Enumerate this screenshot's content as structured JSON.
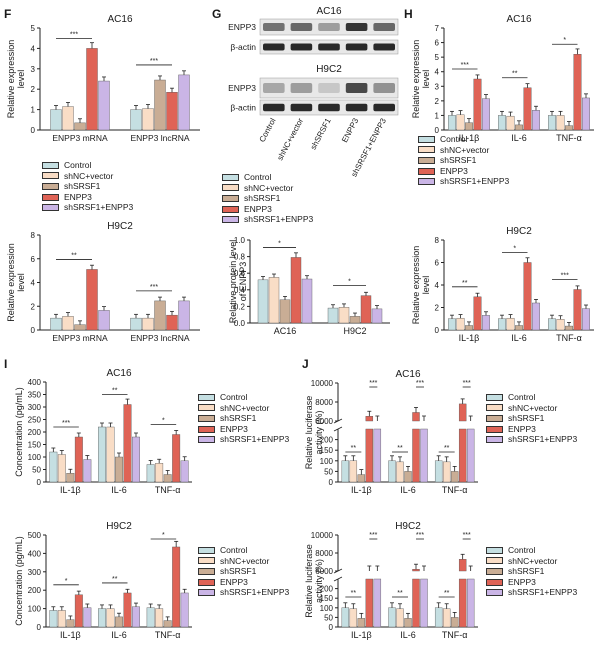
{
  "series_names": [
    "Control",
    "shNC+vector",
    "shSRSF1",
    "ENPP3",
    "shSRSF1+ENPP3"
  ],
  "colors": {
    "Control": "#c5dfe2",
    "shNC+vector": "#f9ddc6",
    "shSRSF1": "#c9ad95",
    "ENPP3": "#df6356",
    "shSRSF1+ENPP3": "#cab5e6"
  },
  "panels": {
    "F": {
      "letter": "F",
      "ylabel": "Relative expression level",
      "cells": [
        "AC16",
        "H9C2"
      ],
      "categories": [
        "ENPP3 mRNA",
        "ENPP3 lncRNA"
      ]
    },
    "G": {
      "letter": "G",
      "blot_cells": [
        "AC16",
        "H9C2"
      ],
      "blot_labels": [
        "ENPP3",
        "β-actin",
        "ENPP3",
        "β-actin"
      ],
      "lane_labels": [
        "Control",
        "shNC+vector",
        "shSRSF1",
        "ENPP3",
        "shSRSF1+ENPP3"
      ],
      "ylabel": "Relative protein level of ENPP3"
    },
    "H": {
      "letter": "H",
      "ylabel": "Relative expression level",
      "cells": [
        "AC16",
        "H9C2"
      ],
      "categories": [
        "IL-1β",
        "IL-6",
        "TNF-α"
      ]
    },
    "I": {
      "letter": "I",
      "ylabel": "Concentration (pg/mL)",
      "cells": [
        "AC16",
        "H9C2"
      ],
      "categories": [
        "IL-1β",
        "IL-6",
        "TNF-α"
      ]
    },
    "J": {
      "letter": "J",
      "ylabel": "Relative luciferase activity (%)",
      "cells": [
        "AC16",
        "H9C2"
      ],
      "categories": [
        "IL-1β",
        "IL-6",
        "TNF-α"
      ]
    }
  },
  "chart_data": [
    {
      "id": "F-AC16",
      "type": "bar",
      "title": "AC16",
      "ylabel": "Relative expression level",
      "ylim": [
        0,
        5
      ],
      "yticks": [
        "0",
        "1",
        "2",
        "3",
        "4",
        "5"
      ],
      "categories": [
        "ENPP3 mRNA",
        "ENPP3 lncRNA"
      ],
      "series": [
        {
          "name": "Control",
          "values": [
            1.0,
            1.0
          ]
        },
        {
          "name": "shNC+vector",
          "values": [
            1.15,
            1.05
          ]
        },
        {
          "name": "shSRSF1",
          "values": [
            0.35,
            2.45
          ]
        },
        {
          "name": "ENPP3",
          "values": [
            4.0,
            1.85
          ]
        },
        {
          "name": "shSRSF1+ENPP3",
          "values": [
            2.4,
            2.7
          ]
        }
      ],
      "significance": [
        "***"
      ]
    },
    {
      "id": "F-H9C2",
      "type": "bar",
      "title": "H9C2",
      "ylabel": "Relative expression level",
      "ylim": [
        0,
        8
      ],
      "yticks": [
        "0",
        "2",
        "4",
        "6",
        "8"
      ],
      "categories": [
        "ENPP3 mRNA",
        "ENPP3 lncRNA"
      ],
      "series": [
        {
          "name": "Control",
          "values": [
            1.0,
            1.0
          ]
        },
        {
          "name": "shNC+vector",
          "values": [
            1.15,
            1.0
          ]
        },
        {
          "name": "shSRSF1",
          "values": [
            0.45,
            2.45
          ]
        },
        {
          "name": "ENPP3",
          "values": [
            5.1,
            1.25
          ]
        },
        {
          "name": "shSRSF1+ENPP3",
          "values": [
            1.65,
            2.45
          ]
        }
      ],
      "significance": [
        "**",
        "***"
      ]
    },
    {
      "id": "G",
      "type": "bar",
      "title": "",
      "ylabel": "Relative protein level of ENPP3",
      "ylim": [
        0,
        1.0
      ],
      "yticks": [
        "0.0",
        "0.2",
        "0.4",
        "0.6",
        "0.8",
        "1.0"
      ],
      "categories": [
        "AC16",
        "H9C2"
      ],
      "series": [
        {
          "name": "Control",
          "values": [
            0.52,
            0.18
          ]
        },
        {
          "name": "shNC+vector",
          "values": [
            0.55,
            0.19
          ]
        },
        {
          "name": "shSRSF1",
          "values": [
            0.28,
            0.08
          ]
        },
        {
          "name": "ENPP3",
          "values": [
            0.79,
            0.33
          ]
        },
        {
          "name": "shSRSF1+ENPP3",
          "values": [
            0.53,
            0.17
          ]
        }
      ],
      "significance": [
        "*"
      ]
    },
    {
      "id": "H-AC16",
      "type": "bar",
      "title": "AC16",
      "ylabel": "Relative expression level",
      "ylim": [
        0,
        7
      ],
      "yticks": [
        "0",
        "1",
        "2",
        "3",
        "4",
        "5",
        "6",
        "7"
      ],
      "categories": [
        "IL-1β",
        "IL-6",
        "TNF-α"
      ],
      "series": [
        {
          "name": "Control",
          "values": [
            1.0,
            1.0,
            1.0
          ]
        },
        {
          "name": "shNC+vector",
          "values": [
            1.05,
            0.95,
            1.0
          ]
        },
        {
          "name": "shSRSF1",
          "values": [
            0.5,
            0.35,
            0.3
          ]
        },
        {
          "name": "ENPP3",
          "values": [
            3.5,
            2.9,
            5.2
          ]
        },
        {
          "name": "shSRSF1+ENPP3",
          "values": [
            2.15,
            1.35,
            2.2
          ]
        }
      ],
      "significance": [
        "***",
        "**",
        "*"
      ]
    },
    {
      "id": "H-H9C2",
      "type": "bar",
      "title": "H9C2",
      "ylabel": "Relative expression level",
      "ylim": [
        0,
        8
      ],
      "yticks": [
        "0",
        "2",
        "4",
        "6",
        "8"
      ],
      "categories": [
        "IL-1β",
        "IL-6",
        "TNF-α"
      ],
      "series": [
        {
          "name": "Control",
          "values": [
            1.0,
            1.0,
            1.0
          ]
        },
        {
          "name": "shNC+vector",
          "values": [
            1.05,
            1.05,
            0.95
          ]
        },
        {
          "name": "shSRSF1",
          "values": [
            0.4,
            0.4,
            0.35
          ]
        },
        {
          "name": "ENPP3",
          "values": [
            2.95,
            6.0,
            3.6
          ]
        },
        {
          "name": "shSRSF1+ENPP3",
          "values": [
            1.3,
            2.4,
            1.9
          ]
        }
      ],
      "significance": [
        "**",
        "*",
        "***"
      ]
    },
    {
      "id": "I-AC16",
      "type": "bar",
      "title": "AC16",
      "ylabel": "Concentration (pg/mL)",
      "ylim": [
        0,
        400
      ],
      "yticks": [
        "0",
        "50",
        "100",
        "150",
        "200",
        "250",
        "300",
        "350",
        "400"
      ],
      "categories": [
        "IL-1β",
        "IL-6",
        "TNF-α"
      ],
      "series": [
        {
          "name": "Control",
          "values": [
            120,
            220,
            70
          ]
        },
        {
          "name": "shNC+vector",
          "values": [
            110,
            220,
            75
          ]
        },
        {
          "name": "shSRSF1",
          "values": [
            35,
            100,
            30
          ]
        },
        {
          "name": "ENPP3",
          "values": [
            180,
            310,
            190
          ]
        },
        {
          "name": "shSRSF1+ENPP3",
          "values": [
            90,
            180,
            85
          ]
        }
      ],
      "significance": [
        "***",
        "**",
        "*"
      ]
    },
    {
      "id": "I-H9C2",
      "type": "bar",
      "title": "H9C2",
      "ylabel": "Concentration (pg/mL)",
      "ylim": [
        0,
        500
      ],
      "yticks": [
        "0",
        "100",
        "200",
        "300",
        "400",
        "500"
      ],
      "categories": [
        "IL-1β",
        "IL-6",
        "TNF-α"
      ],
      "series": [
        {
          "name": "Control",
          "values": [
            90,
            100,
            105
          ]
        },
        {
          "name": "shNC+vector",
          "values": [
            90,
            100,
            100
          ]
        },
        {
          "name": "shSRSF1",
          "values": [
            40,
            55,
            35
          ]
        },
        {
          "name": "ENPP3",
          "values": [
            175,
            185,
            435
          ]
        },
        {
          "name": "shSRSF1+ENPP3",
          "values": [
            105,
            110,
            185
          ]
        }
      ],
      "significance": [
        "*",
        "**"
      ]
    },
    {
      "id": "J-AC16",
      "type": "bar",
      "title": "AC16",
      "ylabel": "Relative luciferase activity (%)",
      "axis_break": [
        250,
        6000
      ],
      "ylim_lower": [
        0,
        250
      ],
      "ylim_upper": [
        6000,
        10000
      ],
      "yticks": [
        "0",
        "50",
        "100",
        "150",
        "200",
        "6000",
        "8000",
        "10000"
      ],
      "categories": [
        "IL-1β",
        "IL-6",
        "TNF-α"
      ],
      "series": [
        {
          "name": "Control",
          "values": [
            100,
            100,
            100
          ]
        },
        {
          "name": "shNC+vector",
          "values": [
            100,
            95,
            95
          ]
        },
        {
          "name": "shSRSF1",
          "values": [
            35,
            50,
            50
          ]
        },
        {
          "name": "ENPP3",
          "values": [
            6500,
            6900,
            7800
          ]
        },
        {
          "name": "shSRSF1+ENPP3",
          "values": [
            2000,
            2000,
            2000
          ]
        }
      ],
      "significance": [
        "***",
        "**"
      ]
    },
    {
      "id": "J-H9C2",
      "type": "bar",
      "title": "H9C2",
      "ylabel": "Relative luciferase activity (%)",
      "axis_break": [
        250,
        6000
      ],
      "ylim_lower": [
        0,
        250
      ],
      "ylim_upper": [
        6000,
        10000
      ],
      "yticks": [
        "0",
        "50",
        "100",
        "150",
        "200",
        "6000",
        "8000",
        "10000"
      ],
      "categories": [
        "IL-1β",
        "IL-6",
        "TNF-α"
      ],
      "series": [
        {
          "name": "Control",
          "values": [
            100,
            100,
            100
          ]
        },
        {
          "name": "shNC+vector",
          "values": [
            95,
            95,
            95
          ]
        },
        {
          "name": "shSRSF1",
          "values": [
            45,
            45,
            50
          ]
        },
        {
          "name": "ENPP3",
          "values": [
            5200,
            6200,
            7300
          ]
        },
        {
          "name": "shSRSF1+ENPP3",
          "values": [
            2000,
            2000,
            2000
          ]
        }
      ],
      "significance": [
        "***",
        "**"
      ]
    }
  ]
}
